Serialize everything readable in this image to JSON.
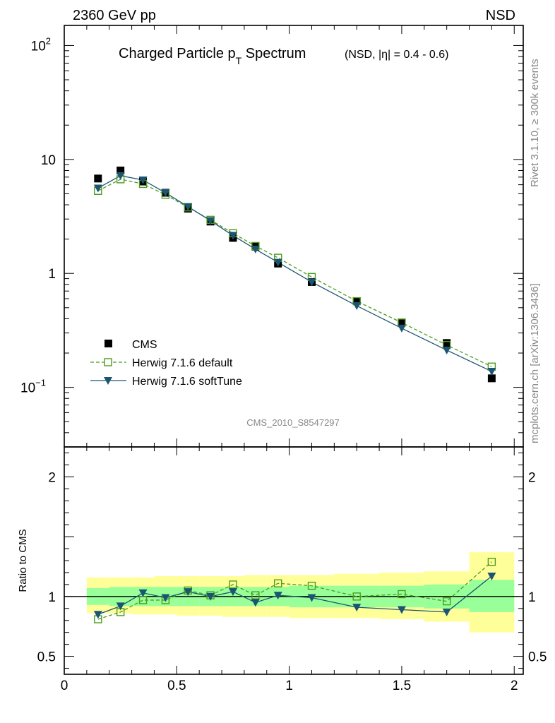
{
  "header": {
    "energy_label": "2360 GeV pp",
    "process_label": "NSD"
  },
  "side_labels": {
    "rivet": "Rivet 3.1.10, ≥ 300k events",
    "source": "mcplots.cern.ch [arXiv:1306.3436]"
  },
  "chart_data": [
    {
      "type": "scatter",
      "title_main": "Charged Particle p",
      "title_sub": "T",
      "title_tail": " Spectrum",
      "title_extra": "(NSD, |η| = 0.4 - 0.6)",
      "analysis_id": "CMS_2010_S8547297",
      "xlim": [
        0,
        2.04
      ],
      "ylim": [
        0.03,
        150
      ],
      "yscale": "log",
      "y_ticks": [
        {
          "value": 100,
          "base": "10",
          "exp": "2"
        },
        {
          "value": 10,
          "base": "10",
          "exp": ""
        },
        {
          "value": 1,
          "base": "1",
          "exp": ""
        },
        {
          "value": 0.1,
          "base": "10",
          "exp": "−1"
        }
      ],
      "legend_position": "bottom-left",
      "x": [
        0.15,
        0.25,
        0.35,
        0.45,
        0.55,
        0.65,
        0.75,
        0.85,
        0.95,
        1.1,
        1.3,
        1.5,
        1.7,
        1.9
      ],
      "series": [
        {
          "name": "CMS",
          "marker": "square-filled",
          "color": "#000000",
          "line": "none",
          "values": [
            6.8,
            8.0,
            6.4,
            5.1,
            3.7,
            2.85,
            2.05,
            1.72,
            1.22,
            0.84,
            0.57,
            0.37,
            0.245,
            0.12
          ]
        },
        {
          "name": "Herwig 7.1.6 default",
          "marker": "square-open",
          "color": "#4d9b21",
          "line": "dashed",
          "values": [
            5.3,
            6.7,
            6.1,
            4.9,
            3.8,
            2.95,
            2.25,
            1.74,
            1.37,
            0.93,
            0.57,
            0.37,
            0.235,
            0.152
          ]
        },
        {
          "name": "Herwig 7.1.6 softTune",
          "marker": "triangle-down",
          "color": "#1c5572",
          "line": "solid",
          "values": [
            5.6,
            7.2,
            6.6,
            5.1,
            3.85,
            2.9,
            2.15,
            1.63,
            1.25,
            0.84,
            0.52,
            0.33,
            0.212,
            0.138
          ]
        }
      ]
    },
    {
      "type": "scatter",
      "ylabel": "Ratio to CMS",
      "xlim": [
        0,
        2.04
      ],
      "ylim": [
        0.35,
        2.25
      ],
      "x_ticks": [
        "0",
        "0.5",
        "1",
        "1.5",
        "2"
      ],
      "x_tick_values": [
        0,
        0.5,
        1,
        1.5,
        2
      ],
      "y_ticks": [
        "2",
        "1",
        "0.5"
      ],
      "y_tick_values": [
        2,
        1,
        0.5
      ],
      "reference_line": 1,
      "bins": [
        [
          0.1,
          0.2
        ],
        [
          0.2,
          0.3
        ],
        [
          0.3,
          0.4
        ],
        [
          0.4,
          0.5
        ],
        [
          0.5,
          0.6
        ],
        [
          0.6,
          0.7
        ],
        [
          0.7,
          0.8
        ],
        [
          0.8,
          0.9
        ],
        [
          0.9,
          1.0
        ],
        [
          1.0,
          1.2
        ],
        [
          1.2,
          1.4
        ],
        [
          1.4,
          1.6
        ],
        [
          1.6,
          1.8
        ],
        [
          1.8,
          2.0
        ]
      ],
      "band_inner": {
        "color": "#99ff99",
        "low": [
          0.93,
          0.92,
          0.92,
          0.92,
          0.92,
          0.92,
          0.92,
          0.92,
          0.92,
          0.91,
          0.91,
          0.91,
          0.9,
          0.87
        ],
        "high": [
          1.07,
          1.08,
          1.08,
          1.08,
          1.08,
          1.08,
          1.08,
          1.08,
          1.08,
          1.09,
          1.09,
          1.09,
          1.1,
          1.14
        ]
      },
      "band_outer": {
        "color": "#ffff99",
        "low": [
          0.86,
          0.86,
          0.85,
          0.85,
          0.84,
          0.84,
          0.83,
          0.83,
          0.83,
          0.82,
          0.82,
          0.81,
          0.79,
          0.7
        ],
        "high": [
          1.16,
          1.16,
          1.16,
          1.17,
          1.17,
          1.17,
          1.17,
          1.18,
          1.18,
          1.18,
          1.19,
          1.2,
          1.21,
          1.37
        ]
      },
      "x": [
        0.15,
        0.25,
        0.35,
        0.45,
        0.55,
        0.65,
        0.75,
        0.85,
        0.95,
        1.1,
        1.3,
        1.5,
        1.7,
        1.9
      ],
      "series": [
        {
          "name": "Herwig 7.1.6 default",
          "marker": "square-open",
          "color": "#4d9b21",
          "line": "dashed",
          "values": [
            0.81,
            0.87,
            0.97,
            0.97,
            1.05,
            1.01,
            1.1,
            1.01,
            1.11,
            1.09,
            1.0,
            1.02,
            0.96,
            1.29
          ]
        },
        {
          "name": "Herwig 7.1.6 softTune",
          "marker": "triangle-down",
          "color": "#1c5572",
          "line": "solid",
          "values": [
            0.85,
            0.92,
            1.03,
            0.99,
            1.04,
            1.0,
            1.04,
            0.95,
            1.01,
            0.99,
            0.91,
            0.89,
            0.87,
            1.17
          ]
        }
      ]
    }
  ]
}
